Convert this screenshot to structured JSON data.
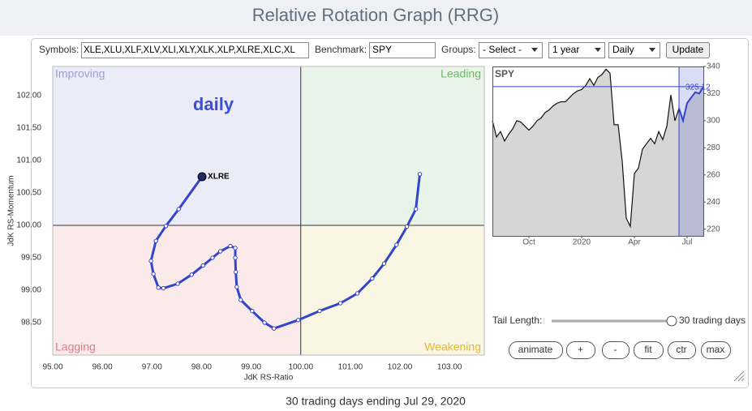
{
  "header": {
    "title": "Relative Rotation Graph (RRG)"
  },
  "controls": {
    "symbols_label": "Symbols:",
    "symbols_value": "XLE,XLU,XLF,XLV,XLI,XLY,XLK,XLP,XLRE,XLC,XL",
    "benchmark_label": "Benchmark:",
    "benchmark_value": "SPY",
    "groups_label": "Groups:",
    "groups_value": "- Select -",
    "period_value": "1 year",
    "frequency_value": "Daily",
    "update_button": "Update",
    "tail_length_label": "Tail Length:",
    "tail_length_value": "30 trading days",
    "buttons": [
      "animate",
      "+",
      "-",
      "fit",
      "ctr",
      "max"
    ]
  },
  "chart_data": [
    {
      "type": "rrg",
      "x_label": "JdK RS-Ratio",
      "y_label": "JdK RS-Momentum",
      "annotation": "daily",
      "quadrants": [
        "Improving",
        "Leading",
        "Lagging",
        "Weakening"
      ],
      "center": [
        100,
        100
      ],
      "xlim": [
        95,
        103.7
      ],
      "ylim": [
        98,
        102.45
      ],
      "xticks": [
        {
          "value": 95,
          "label": "95.00"
        },
        {
          "value": 96,
          "label": "96.00"
        },
        {
          "value": 97,
          "label": "97.00"
        },
        {
          "value": 98,
          "label": "98.00"
        },
        {
          "value": 99,
          "label": "99.00"
        },
        {
          "value": 100,
          "label": "100.00"
        },
        {
          "value": 101,
          "label": "101.00"
        },
        {
          "value": 102,
          "label": "102.00"
        },
        {
          "value": 103,
          "label": "103.00"
        }
      ],
      "yticks": [
        {
          "value": 98.5,
          "label": "98.50"
        },
        {
          "value": 99,
          "label": "99.00"
        },
        {
          "value": 99.5,
          "label": "99.50"
        },
        {
          "value": 100,
          "label": "100.00"
        },
        {
          "value": 100.5,
          "label": "100.50"
        },
        {
          "value": 101,
          "label": "101.00"
        },
        {
          "value": 101.5,
          "label": "101.50"
        },
        {
          "value": 102,
          "label": "102.00"
        }
      ],
      "series": [
        {
          "name": "XLRE",
          "color": "#3344cc",
          "x": [
            102.4,
            102.32,
            102.14,
            101.93,
            101.68,
            101.44,
            101.14,
            100.8,
            100.38,
            99.95,
            99.46,
            99.27,
            99.02,
            98.79,
            98.71,
            98.69,
            98.68,
            98.68,
            98.58,
            98.38,
            98.22,
            98.03,
            97.8,
            97.52,
            97.23,
            97.13,
            97.03,
            96.98,
            97.08,
            97.28,
            97.54,
            98.01
          ],
          "values": [
            100.79,
            100.25,
            99.98,
            99.7,
            99.41,
            99.18,
            98.95,
            98.8,
            98.68,
            98.54,
            98.41,
            98.5,
            98.68,
            98.85,
            99.05,
            99.28,
            99.5,
            99.65,
            99.68,
            99.6,
            99.5,
            99.38,
            99.24,
            99.1,
            99.03,
            99.04,
            99.25,
            99.45,
            99.76,
            99.99,
            100.25,
            100.75
          ]
        }
      ]
    },
    {
      "type": "line",
      "title": "SPY",
      "color": "#111111",
      "highlight_color": "#3344cc",
      "highlight_from": 46,
      "xlim": [
        0,
        52
      ],
      "ylim": [
        215,
        340
      ],
      "xticks": [
        {
          "value": 9,
          "label": "Oct"
        },
        {
          "value": 22,
          "label": "2020"
        },
        {
          "value": 35,
          "label": "Apr"
        },
        {
          "value": 48,
          "label": "Jul"
        }
      ],
      "yticks": [
        220,
        240,
        260,
        280,
        300,
        320,
        340
      ],
      "values": [
        300,
        288,
        292,
        285,
        290,
        294,
        300,
        299,
        296,
        293,
        296,
        300,
        302,
        306,
        308,
        311,
        313,
        314,
        314,
        317,
        320,
        322,
        323,
        326,
        331,
        326,
        332,
        334,
        338,
        335,
        297,
        297,
        270,
        228,
        222,
        261,
        265,
        279,
        283,
        287,
        283,
        292,
        286,
        296,
        319,
        300,
        309,
        300,
        313,
        317,
        321,
        320,
        325.12
      ]
    }
  ],
  "footer": "30 trading days ending Jul 29, 2020"
}
